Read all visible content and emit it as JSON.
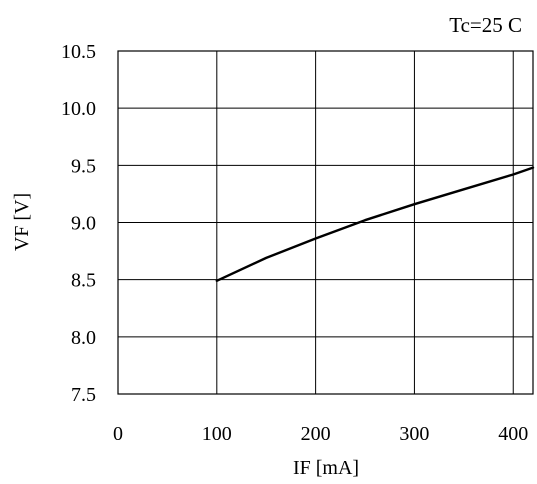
{
  "chart_data": {
    "type": "line",
    "title": "",
    "annotation": "Tc=25 C",
    "xlabel": "IF [mA]",
    "ylabel": "VF [V]",
    "xlim": [
      0,
      420
    ],
    "ylim": [
      7.5,
      10.5
    ],
    "xticks": [
      0,
      100,
      200,
      300,
      400
    ],
    "xtick_labels": [
      "0",
      "100",
      "200",
      "300",
      "400"
    ],
    "yticks": [
      7.5,
      8.0,
      8.5,
      9.0,
      9.5,
      10.0,
      10.5
    ],
    "ytick_labels": [
      "7.5",
      "8.0",
      "8.5",
      "9.0",
      "9.5",
      "10.0",
      "10.5"
    ],
    "grid": true,
    "series": [
      {
        "x": [
          100,
          150,
          200,
          250,
          300,
          350,
          400,
          420
        ],
        "y": [
          8.49,
          8.69,
          8.86,
          9.02,
          9.16,
          9.29,
          9.42,
          9.48
        ]
      }
    ],
    "colors": {
      "line": "#000000",
      "grid": "#000000",
      "background": "#ffffff"
    }
  }
}
